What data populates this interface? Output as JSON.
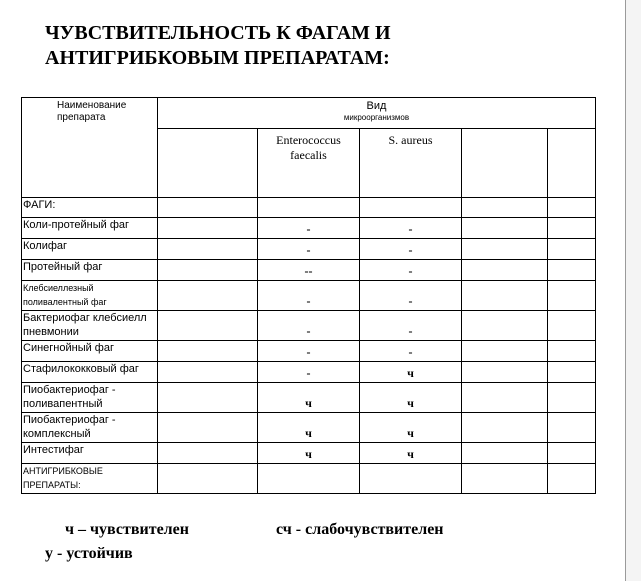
{
  "title": [
    "ЧУВСТВИТЕЛЬНОСТЬ К ФАГАМ И",
    "АНТИГРИБКОВЫМ ПРЕПАРАТАМ:"
  ],
  "table": {
    "header_name": "Наименование препарата",
    "header_kind": "Вид",
    "header_kind_sub": "микроорганизмов",
    "organisms": [
      "",
      "Enterococcus faecalis",
      "S. aureus",
      "",
      ""
    ],
    "rows": [
      {
        "name": "ФАГИ:",
        "values": [
          "",
          "",
          "",
          "",
          ""
        ]
      },
      {
        "name": "Коли-протейный фаг",
        "values": [
          "",
          "-",
          "-",
          "",
          ""
        ]
      },
      {
        "name": "Колифаг",
        "values": [
          "",
          "-",
          "-",
          "",
          ""
        ]
      },
      {
        "name": "Протейный фаг",
        "values": [
          "",
          "--",
          "-",
          "",
          ""
        ]
      },
      {
        "name": "Клебсиеллезный поливалентный фаг",
        "values": [
          "",
          "-",
          "-",
          "",
          ""
        ],
        "small": true
      },
      {
        "name": "Бактериофаг клебсиелл пневмонии",
        "values": [
          "",
          "-",
          "-",
          "",
          ""
        ]
      },
      {
        "name": "Синегнойный фаг",
        "values": [
          "",
          "-",
          "-",
          "",
          ""
        ]
      },
      {
        "name": "Стафилококковый фаг",
        "values": [
          "",
          "-",
          "ч",
          "",
          ""
        ]
      },
      {
        "name": "Пиобактериофаг - поливапентный",
        "values": [
          "",
          "ч",
          "ч",
          "",
          ""
        ]
      },
      {
        "name": "Пиобактериофаг - комплексный",
        "values": [
          "",
          "ч",
          "ч",
          "",
          ""
        ]
      },
      {
        "name": "Интестифаг",
        "values": [
          "",
          "ч",
          "ч",
          "",
          ""
        ]
      },
      {
        "name": "АНТИГРИБКОВЫЕ ПРЕПАРАТЫ:",
        "values": [
          "",
          "",
          "",
          "",
          ""
        ],
        "small": true
      }
    ]
  },
  "legend": {
    "sensitive": "ч – чувствителен",
    "weak": "сч - слабочувствителен",
    "resistant": "у - устойчив"
  }
}
